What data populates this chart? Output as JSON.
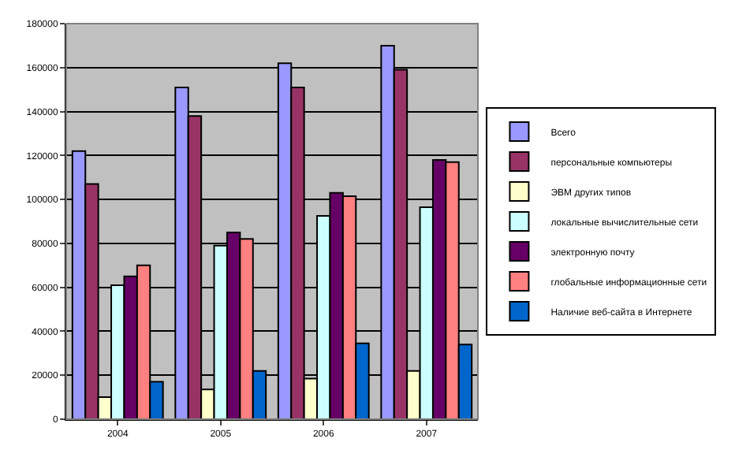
{
  "chart_data": {
    "type": "bar",
    "categories": [
      "2004",
      "2005",
      "2006",
      "2007"
    ],
    "series": [
      {
        "name": "Всего",
        "color": "#9999ff",
        "values": [
          122000,
          151000,
          162000,
          170000
        ]
      },
      {
        "name": "персональные компьютеры",
        "color": "#993366",
        "values": [
          107000,
          138000,
          151000,
          159000
        ]
      },
      {
        "name": "ЭВМ других типов",
        "color": "#ffffcc",
        "values": [
          10000,
          13500,
          18500,
          22000
        ]
      },
      {
        "name": "локальные вычислительные сети",
        "color": "#ccffff",
        "values": [
          61000,
          79000,
          92500,
          96500
        ]
      },
      {
        "name": "электронную почту",
        "color": "#660066",
        "values": [
          65000,
          85000,
          103000,
          118000
        ]
      },
      {
        "name": "глобальные информационные сети",
        "color": "#ff8080",
        "values": [
          70000,
          82000,
          101500,
          117000
        ]
      },
      {
        "name": "Наличие веб-сайта в Интернете",
        "color": "#0066cc",
        "values": [
          17000,
          22000,
          34500,
          34000
        ]
      }
    ],
    "ylim": [
      0,
      180000
    ],
    "yticks": [
      0,
      20000,
      40000,
      60000,
      80000,
      100000,
      120000,
      140000,
      160000,
      180000
    ],
    "grid": "y",
    "legend": "right"
  }
}
